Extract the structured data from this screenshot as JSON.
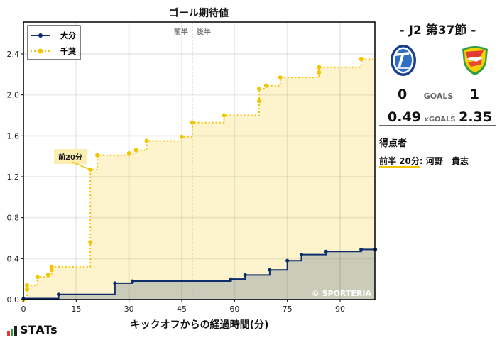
{
  "header": {
    "title": "ゴール期待値"
  },
  "halves": {
    "first": "前半",
    "second": "後半"
  },
  "legend": [
    {
      "name": "大分",
      "color": "#0d2d6b",
      "style": "solid"
    },
    {
      "name": "千葉",
      "color": "#f5c400",
      "style": "dotted"
    }
  ],
  "annotation": {
    "text": "前20分"
  },
  "watermark": "© SPORTERIA",
  "xaxis": {
    "label": "キックオフからの経過時間(分)",
    "ticks": [
      "0",
      "15",
      "30",
      "45",
      "60",
      "75",
      "90"
    ]
  },
  "yaxis": {
    "ticks": [
      "0.0",
      "0.4",
      "0.8",
      "1.2",
      "1.6",
      "2.0",
      "2.4"
    ]
  },
  "match": {
    "round": "-  J2 第37節  -",
    "home": {
      "name": "大分",
      "goals": "0",
      "xg": "0.49"
    },
    "away": {
      "name": "千葉",
      "goals": "1",
      "xg": "2.35"
    },
    "goals_label": "GOALS",
    "xg_label": "xGOALS"
  },
  "scorers": {
    "heading": "得点者",
    "items": [
      {
        "time": "前半 20分",
        "player": ": 河野　貴志"
      }
    ]
  },
  "brand": {
    "logo_text": "STATs"
  },
  "colors": {
    "home": "#0d2d6b",
    "away": "#f5c400",
    "home_fill": "#cbcbb9",
    "away_fill": "#fdf3cc"
  },
  "chart_data": {
    "type": "line",
    "title": "ゴール期待値",
    "xlabel": "キックオフからの経過時間(分)",
    "ylabel": "",
    "xlim": [
      0,
      100
    ],
    "ylim": [
      0,
      2.7
    ],
    "grid": true,
    "legend_position": "upper left",
    "annotations": [
      {
        "x": 19,
        "y": 1.27,
        "text": "前20分"
      },
      {
        "x": 48,
        "text": "前半 | 後半 (half-time divider)"
      }
    ],
    "series": [
      {
        "name": "大分",
        "step": true,
        "x": [
          0,
          10,
          26,
          31,
          59,
          63,
          70,
          75,
          79,
          86,
          96,
          100
        ],
        "y": [
          0.01,
          0.05,
          0.16,
          0.18,
          0.2,
          0.24,
          0.29,
          0.38,
          0.44,
          0.47,
          0.49,
          0.49
        ]
      },
      {
        "name": "千葉",
        "step": true,
        "x": [
          0,
          1,
          1,
          4,
          7,
          8,
          8,
          19,
          19,
          21,
          30,
          32,
          35,
          45,
          48,
          57,
          67,
          67,
          69,
          73,
          84,
          84,
          96,
          100
        ],
        "y": [
          0.0,
          0.1,
          0.14,
          0.22,
          0.24,
          0.29,
          0.32,
          0.56,
          1.27,
          1.41,
          1.43,
          1.46,
          1.55,
          1.59,
          1.73,
          1.8,
          1.94,
          2.06,
          2.09,
          2.17,
          2.22,
          2.27,
          2.35,
          2.35
        ]
      }
    ]
  }
}
